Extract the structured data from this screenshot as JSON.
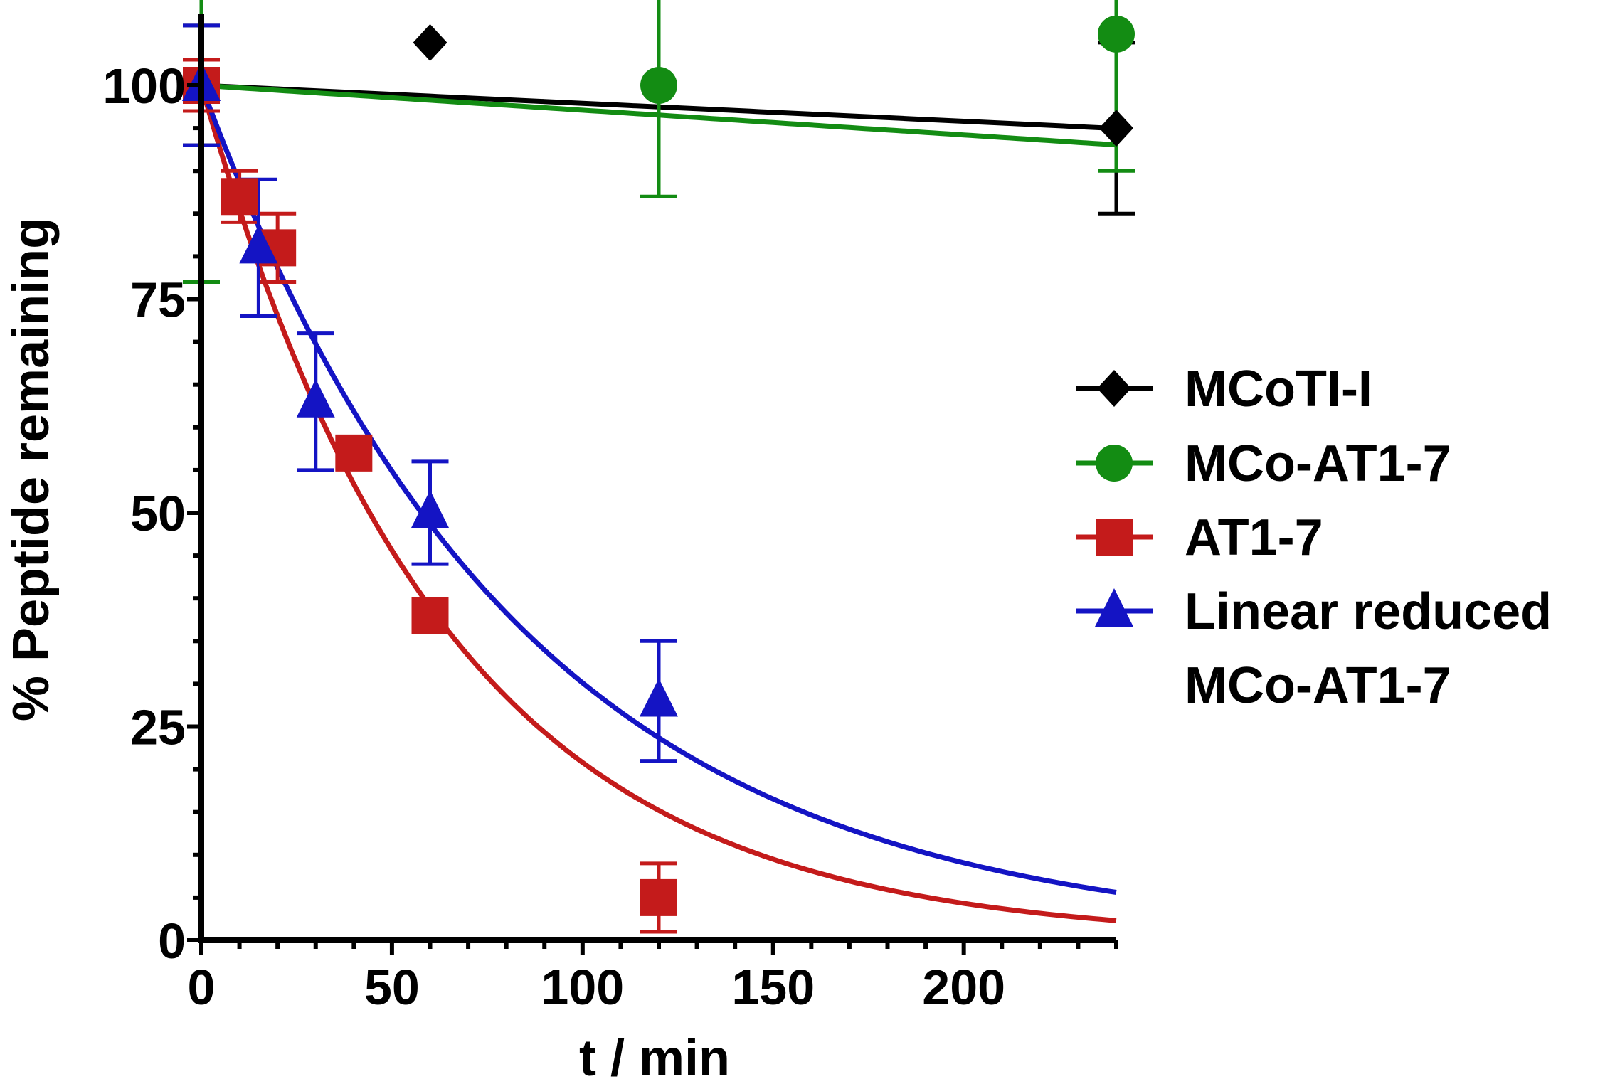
{
  "chart_data": {
    "type": "scatter",
    "xlabel": "t / min",
    "ylabel": "% Peptide remaining",
    "xlim": [
      0,
      240
    ],
    "ylim": [
      0,
      100
    ],
    "x_ticks": [
      0,
      50,
      100,
      150,
      200
    ],
    "x_tick_labels": [
      "0",
      "50",
      "100",
      "150",
      "200"
    ],
    "y_ticks": [
      0,
      25,
      50,
      75,
      100
    ],
    "y_tick_labels": [
      "0",
      "25",
      "50",
      "75",
      "100"
    ],
    "grid": false,
    "legend_position": "right",
    "series": [
      {
        "name": "MCoTI-I",
        "color": "#000000",
        "marker": "diamond",
        "points": [
          {
            "x": 0,
            "y": 100,
            "err": 7
          },
          {
            "x": 60,
            "y": 105,
            "err": 0
          },
          {
            "x": 240,
            "y": 95,
            "err": 10
          }
        ],
        "fit": {
          "model": "linear",
          "a": 100,
          "b": -0.021
        }
      },
      {
        "name": "MCo-AT1-7",
        "color": "#138c13",
        "marker": "circle",
        "points": [
          {
            "x": 0,
            "y": 100,
            "err": 23
          },
          {
            "x": 120,
            "y": 100,
            "err": 13
          },
          {
            "x": 240,
            "y": 106,
            "err": 16
          }
        ],
        "fit": {
          "model": "linear",
          "a": 100,
          "b": -0.029
        }
      },
      {
        "name": "AT1-7",
        "color": "#c41b1b",
        "marker": "square",
        "points": [
          {
            "x": 0,
            "y": 100,
            "err": 3
          },
          {
            "x": 10,
            "y": 87,
            "err": 3
          },
          {
            "x": 20,
            "y": 81,
            "err": 4
          },
          {
            "x": 40,
            "y": 57,
            "err": 0
          },
          {
            "x": 60,
            "y": 38,
            "err": 0
          },
          {
            "x": 120,
            "y": 5,
            "err": 4
          }
        ],
        "fit": {
          "model": "exp",
          "a": 100,
          "k": 0.0157
        }
      },
      {
        "name": "Linear reduced MCo-AT1-7",
        "display_name": [
          "Linear reduced",
          "MCo-AT1-7"
        ],
        "color": "#1414c4",
        "marker": "triangle",
        "points": [
          {
            "x": 0,
            "y": 100,
            "err": 7
          },
          {
            "x": 15,
            "y": 81,
            "err": 8
          },
          {
            "x": 30,
            "y": 63,
            "err": 8
          },
          {
            "x": 60,
            "y": 50,
            "err": 6
          },
          {
            "x": 120,
            "y": 28,
            "err": 7
          }
        ],
        "fit": {
          "model": "exp",
          "a": 100,
          "k": 0.012
        }
      }
    ]
  }
}
